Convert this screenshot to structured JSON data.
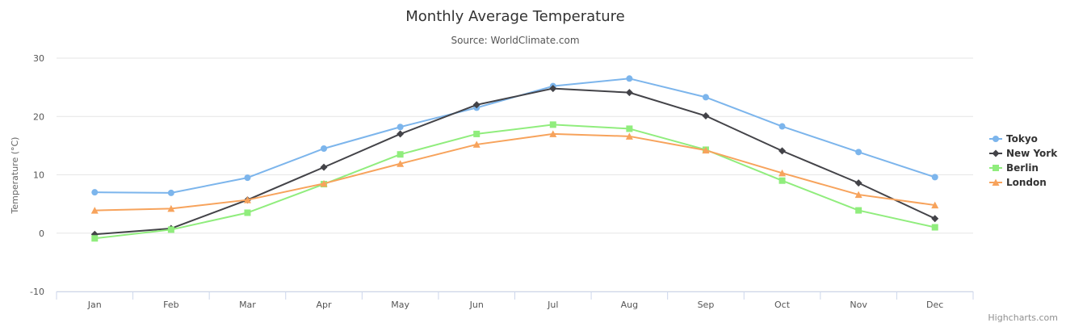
{
  "chart_data": {
    "type": "line",
    "title": "Monthly Average Temperature",
    "subtitle": "Source: WorldClimate.com",
    "xlabel": "",
    "ylabel": "Temperature (°C)",
    "categories": [
      "Jan",
      "Feb",
      "Mar",
      "Apr",
      "May",
      "Jun",
      "Jul",
      "Aug",
      "Sep",
      "Oct",
      "Nov",
      "Dec"
    ],
    "ylim": [
      -10,
      30
    ],
    "yticks": [
      -10,
      0,
      10,
      20,
      30
    ],
    "grid": true,
    "legend_position": "right",
    "series": [
      {
        "name": "Tokyo",
        "color": "#7cb5ec",
        "marker": "circle",
        "values": [
          7.0,
          6.9,
          9.5,
          14.5,
          18.2,
          21.5,
          25.2,
          26.5,
          23.3,
          18.3,
          13.9,
          9.6
        ]
      },
      {
        "name": "New York",
        "color": "#434348",
        "marker": "diamond",
        "values": [
          -0.2,
          0.8,
          5.7,
          11.3,
          17.0,
          22.0,
          24.8,
          24.1,
          20.1,
          14.1,
          8.6,
          2.5
        ]
      },
      {
        "name": "Berlin",
        "color": "#90ed7d",
        "marker": "square",
        "values": [
          -0.9,
          0.6,
          3.5,
          8.4,
          13.5,
          17.0,
          18.6,
          17.9,
          14.3,
          9.0,
          3.9,
          1.0
        ]
      },
      {
        "name": "London",
        "color": "#f7a35c",
        "marker": "triangle",
        "values": [
          3.9,
          4.2,
          5.7,
          8.5,
          11.9,
          15.2,
          17.0,
          16.6,
          14.2,
          10.3,
          6.6,
          4.8
        ]
      }
    ]
  },
  "credits": "Highcharts.com"
}
